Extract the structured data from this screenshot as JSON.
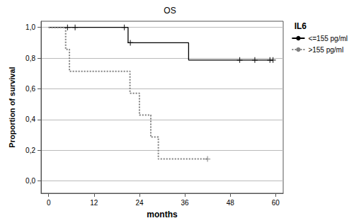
{
  "chart_data": {
    "type": "step",
    "title": "OS",
    "x_label": "months",
    "y_label": "Proportion of survival",
    "legend_title": "IL6",
    "legend": "right",
    "grid": "y",
    "xlim": [
      -2,
      62
    ],
    "xticks": [
      0,
      12,
      24,
      36,
      48,
      60
    ],
    "ylim": [
      -0.08,
      1.04
    ],
    "yticks": [
      {
        "value": 0,
        "label": "0,0"
      },
      {
        "value": 0.2,
        "label": "0,2"
      },
      {
        "value": 0.4,
        "label": "0,4"
      },
      {
        "value": 0.6,
        "label": "0,6"
      },
      {
        "value": 0.8,
        "label": "0,8"
      },
      {
        "value": 1.0,
        "label": "1,0"
      }
    ],
    "series": [
      {
        "name": "<=155 pg/ml",
        "color": "#000000",
        "line_style": "solid",
        "marker": "plus",
        "x": [
          0,
          21,
          37,
          59.3
        ],
        "values": [
          1.0,
          0.9,
          0.7875,
          0.7875
        ],
        "censored": {
          "x": [
            5,
            7,
            20,
            21.6,
            50.5,
            54.5,
            58.5,
            59.3
          ],
          "values": [
            1.0,
            1.0,
            1.0,
            0.9,
            0.7875,
            0.7875,
            0.7875,
            0.7875
          ]
        }
      },
      {
        "name": ">155 pg/ml",
        "color": "#808080",
        "line_style": "dotted",
        "marker": "plus",
        "x": [
          0,
          4.5,
          5.5,
          21.5,
          24,
          27,
          29,
          42
        ],
        "values": [
          1.0,
          0.857,
          0.714,
          0.571,
          0.429,
          0.286,
          0.143,
          0.143
        ],
        "censored": {
          "x": [
            42
          ],
          "values": [
            0.143
          ]
        }
      }
    ]
  }
}
